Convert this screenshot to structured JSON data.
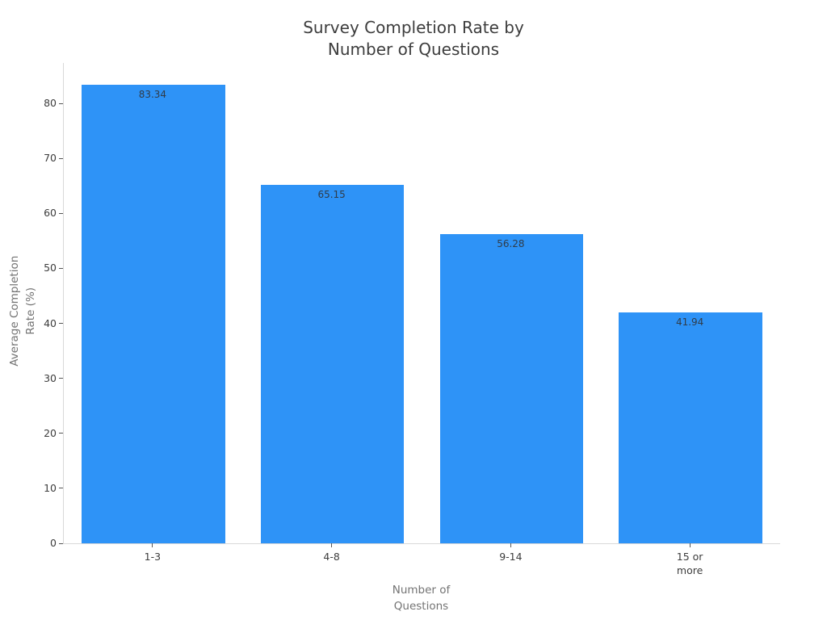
{
  "chart_data": {
    "type": "bar",
    "title": "Survey Completion Rate by\nNumber of Questions",
    "categories": [
      "1-3",
      "4-8",
      "9-14",
      "15 or\nmore"
    ],
    "values": [
      83.34,
      65.15,
      56.28,
      41.94
    ],
    "value_labels": [
      "83.34",
      "65.15",
      "56.28",
      "41.94"
    ],
    "xlabel": "Number of\nQuestions",
    "ylabel": "Average Completion\nRate (%)",
    "y_ticks": [
      0,
      10,
      20,
      30,
      40,
      50,
      60,
      70,
      80
    ],
    "ylim": [
      0,
      87.3
    ],
    "grid": false,
    "legend": "none",
    "colors": {
      "bar": "#2e93f7",
      "bar_label_text": "#303c49",
      "title_text": "#3d3d3d",
      "tick_label_text": "#3c3c3c",
      "axis_title_text": "#737373",
      "axis_line": "#d9d9d9",
      "tick_mark": "#555555",
      "background": "#ffffff"
    }
  }
}
